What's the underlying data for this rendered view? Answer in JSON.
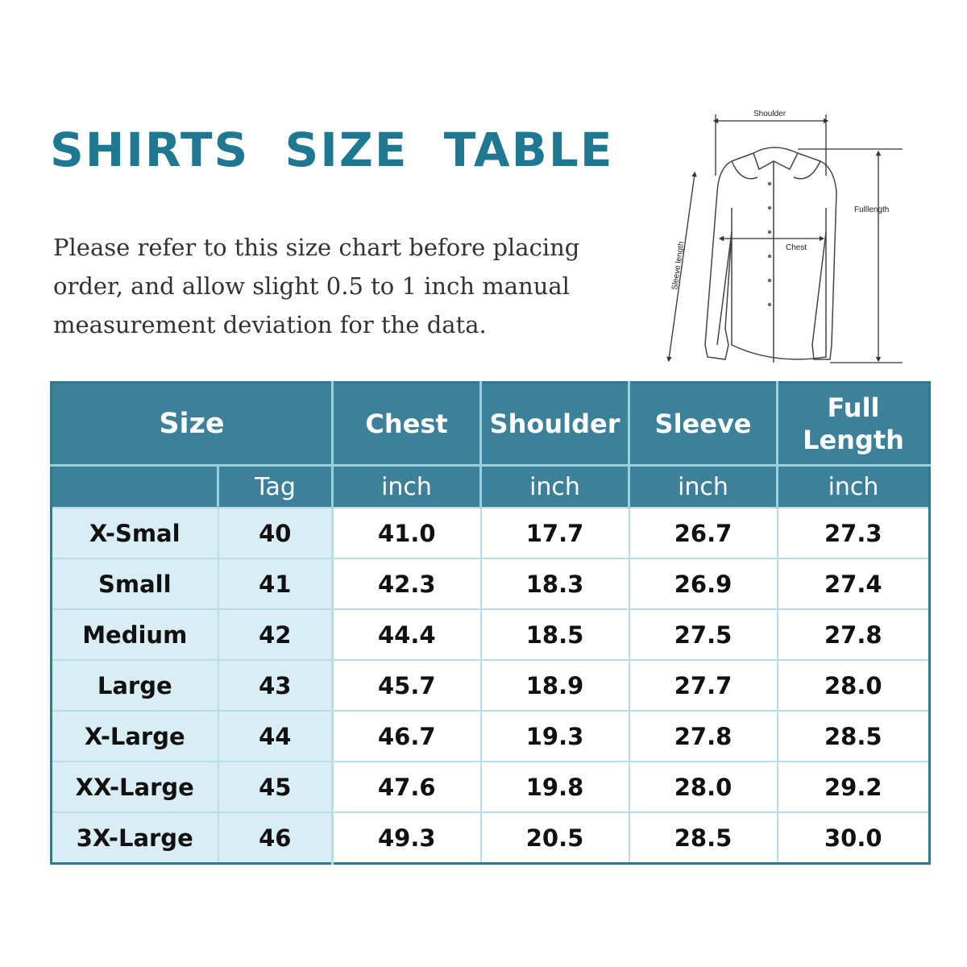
{
  "title": "SHIRTS  SIZE  TABLE",
  "note_lines": [
    "Please refer to this size chart before placing",
    "order, and allow slight 0.5 to 1 inch manual",
    "measurement deviation for the data."
  ],
  "diagram": {
    "shoulder": "Shoulder",
    "full_length": "Fulllength",
    "chest": "Chest",
    "sleeve_length": "Sleeve length"
  },
  "table": {
    "headers": {
      "size": "Size",
      "chest": "Chest",
      "shoulder": "Shoulder",
      "sleeve": "Sleeve",
      "full_length_line1": "Full",
      "full_length_line2": "Length"
    },
    "units": {
      "tag": "Tag",
      "chest": "inch",
      "shoulder": "inch",
      "sleeve": "inch",
      "full_length": "inch"
    },
    "rows": [
      {
        "size": "X-Smal",
        "tag": "40",
        "chest": "41.0",
        "shoulder": "17.7",
        "sleeve": "26.7",
        "full_length": "27.3"
      },
      {
        "size": "Small",
        "tag": "41",
        "chest": "42.3",
        "shoulder": "18.3",
        "sleeve": "26.9",
        "full_length": "27.4"
      },
      {
        "size": "Medium",
        "tag": "42",
        "chest": "44.4",
        "shoulder": "18.5",
        "sleeve": "27.5",
        "full_length": "27.8"
      },
      {
        "size": "Large",
        "tag": "43",
        "chest": "45.7",
        "shoulder": "18.9",
        "sleeve": "27.7",
        "full_length": "28.0"
      },
      {
        "size": "X-Large",
        "tag": "44",
        "chest": "46.7",
        "shoulder": "19.3",
        "sleeve": "27.8",
        "full_length": "28.5"
      },
      {
        "size": "XX-Large",
        "tag": "45",
        "chest": "47.6",
        "shoulder": "19.8",
        "sleeve": "28.0",
        "full_length": "29.2"
      },
      {
        "size": "3X-Large",
        "tag": "46",
        "chest": "49.3",
        "shoulder": "20.5",
        "sleeve": "28.5",
        "full_length": "30.0"
      }
    ]
  },
  "colors": {
    "title": "#1f7891",
    "header_bg": "#3c8199",
    "header_divider": "#9ad0de",
    "size_column_bg": "#d9eef4",
    "body_text": "#111111"
  }
}
